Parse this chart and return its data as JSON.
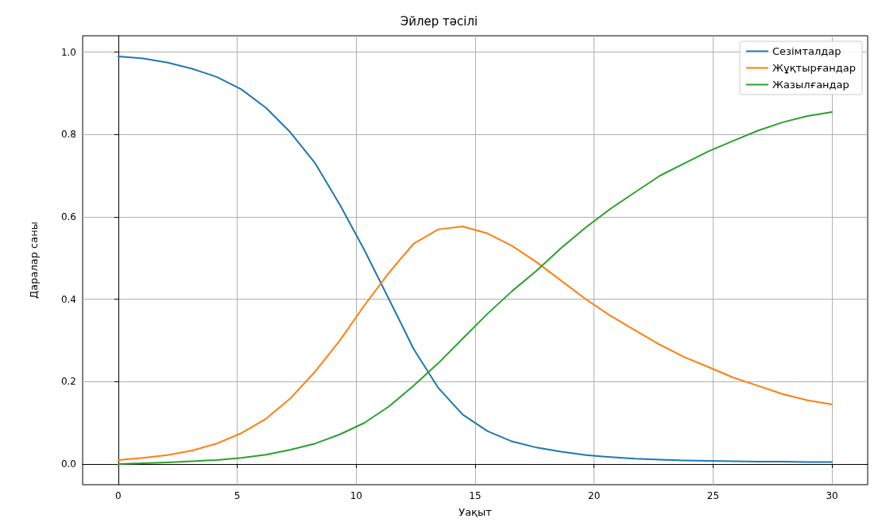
{
  "chart_data": {
    "type": "line",
    "title": "Эйлер тәсілі",
    "xlabel": "Уақыт",
    "ylabel": "Даралар саны",
    "x": [
      0,
      1.03,
      2.07,
      3.1,
      4.14,
      5.17,
      6.21,
      7.24,
      8.28,
      9.31,
      10.34,
      11.38,
      12.41,
      13.45,
      14.48,
      15.52,
      16.55,
      17.59,
      18.62,
      19.66,
      20.69,
      21.72,
      22.76,
      23.79,
      24.83,
      25.86,
      26.9,
      27.93,
      28.97,
      30
    ],
    "series": [
      {
        "name": "Сезімталдар",
        "color": "#1f77b4",
        "values": [
          0.99,
          0.985,
          0.975,
          0.96,
          0.94,
          0.91,
          0.865,
          0.805,
          0.73,
          0.63,
          0.52,
          0.4,
          0.28,
          0.185,
          0.12,
          0.08,
          0.055,
          0.04,
          0.03,
          0.022,
          0.017,
          0.013,
          0.011,
          0.009,
          0.008,
          0.007,
          0.006,
          0.006,
          0.005,
          0.005
        ]
      },
      {
        "name": "Жұқтырғандар",
        "color": "#ff7f0e",
        "values": [
          0.01,
          0.015,
          0.022,
          0.033,
          0.05,
          0.075,
          0.11,
          0.16,
          0.225,
          0.3,
          0.385,
          0.465,
          0.535,
          0.57,
          0.577,
          0.56,
          0.53,
          0.49,
          0.445,
          0.4,
          0.36,
          0.325,
          0.29,
          0.26,
          0.235,
          0.21,
          0.19,
          0.17,
          0.155,
          0.145
        ]
      },
      {
        "name": "Жазылғандар",
        "color": "#2ca02c",
        "values": [
          0,
          0.002,
          0.004,
          0.007,
          0.01,
          0.015,
          0.023,
          0.035,
          0.05,
          0.072,
          0.1,
          0.14,
          0.19,
          0.245,
          0.305,
          0.365,
          0.42,
          0.47,
          0.525,
          0.575,
          0.62,
          0.66,
          0.7,
          0.73,
          0.76,
          0.785,
          0.81,
          0.83,
          0.845,
          0.855
        ]
      }
    ],
    "xlim": [
      -1.5,
      31.5
    ],
    "xticks": [
      0,
      5,
      10,
      15,
      20,
      25,
      30
    ],
    "ylim": [
      -0.05,
      1.04
    ],
    "yticks": [
      {
        "value": 0,
        "label": "0.0"
      },
      {
        "value": 0.2,
        "label": "0.2"
      },
      {
        "value": 0.4,
        "label": "0.4"
      },
      {
        "value": 0.6,
        "label": "0.6"
      },
      {
        "value": 0.8,
        "label": "0.8"
      },
      {
        "value": 1,
        "label": "1.0"
      }
    ],
    "grid": true,
    "legend": "top right",
    "marker": "none",
    "line_style": "solid"
  }
}
